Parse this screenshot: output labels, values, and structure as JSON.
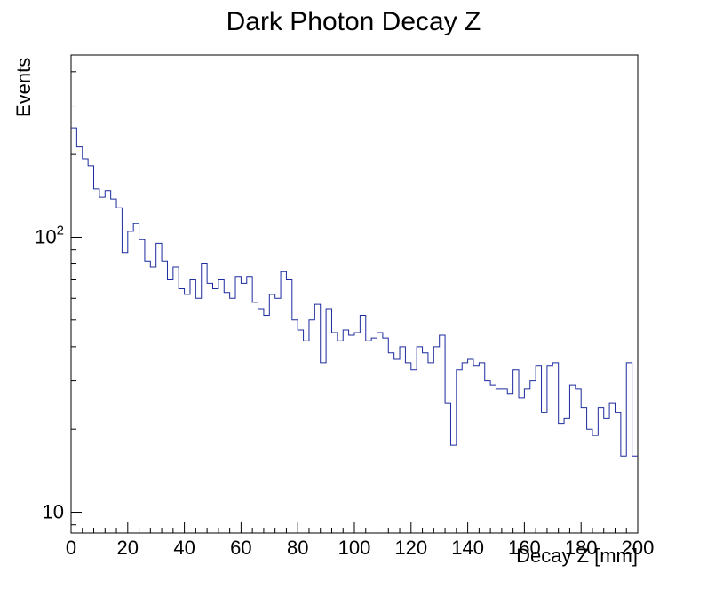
{
  "chart_data": {
    "type": "bar",
    "style": "step-histogram",
    "title": "Dark Photon Decay Z",
    "xlabel": "Decay Z [mm]",
    "ylabel": "Events",
    "xlim": [
      0,
      200
    ],
    "ylim": [
      8.4,
      460
    ],
    "yscale": "log",
    "grid": false,
    "legend": "none",
    "bin_width": 2,
    "x_start": 0,
    "line_color": "#1c2b9e",
    "frame_color": "#000000",
    "x_major_ticks": [
      0,
      20,
      40,
      60,
      80,
      100,
      120,
      140,
      160,
      180,
      200
    ],
    "x_minor_step": 4,
    "y_major_ticks": [
      {
        "v": 10,
        "base": "10",
        "exp": ""
      },
      {
        "v": 100,
        "base": "10",
        "exp": "2"
      }
    ],
    "values": [
      250,
      213,
      193,
      182,
      150,
      140,
      148,
      138,
      128,
      88,
      105,
      112,
      98,
      82,
      78,
      95,
      82,
      70,
      78,
      65,
      62,
      70,
      60,
      80,
      68,
      65,
      70,
      63,
      60,
      72,
      68,
      72,
      58,
      55,
      52,
      62,
      60,
      75,
      70,
      50,
      46,
      42,
      50,
      57,
      35,
      55,
      45,
      42,
      46,
      44,
      45,
      52,
      42,
      43,
      45,
      43,
      38,
      36,
      40,
      35,
      33,
      40,
      38,
      35,
      40,
      44,
      25,
      17.5,
      33,
      35,
      36,
      34,
      35,
      30,
      29,
      28,
      28,
      27,
      33,
      26,
      28,
      30,
      34,
      23,
      34,
      35,
      21,
      22,
      29,
      28,
      24,
      20,
      19,
      24,
      22,
      25,
      23,
      16,
      35,
      16
    ]
  }
}
